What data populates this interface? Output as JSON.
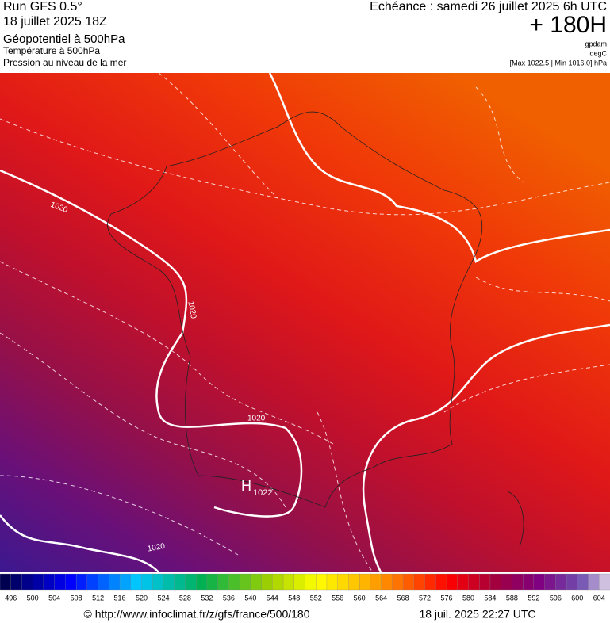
{
  "header": {
    "run": "Run GFS 0.5°",
    "run_date": "18 juillet 2025 18Z",
    "echeance": "Echéance : samedi 26 juillet 2025 6h UTC",
    "lead": "+ 180H",
    "layers": [
      "Géopotentiel à 500hPa",
      "Température à 500hPa",
      "Pression au niveau de la mer"
    ],
    "units": [
      "gpdam",
      "degC",
      "[Max 1022.5 | Min 1016.0] hPa"
    ]
  },
  "map": {
    "isobar_labels": [
      "1020",
      "1020",
      "1020",
      "1020"
    ],
    "high": {
      "symbol": "H",
      "value": "1022"
    }
  },
  "colorbar": {
    "labels": [
      496,
      500,
      504,
      508,
      512,
      516,
      520,
      524,
      528,
      532,
      536,
      540,
      544,
      548,
      552,
      556,
      560,
      564,
      568,
      572,
      576,
      580,
      584,
      588,
      592,
      596,
      600,
      604
    ]
  },
  "footer": {
    "url": "© http://www.infoclimat.fr/z/gfs/france/500/180",
    "timestamp": "18 juil. 2025 22:27 UTC"
  }
}
